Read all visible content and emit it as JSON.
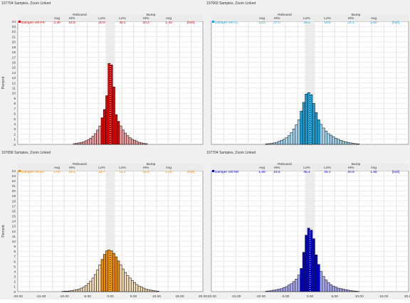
{
  "y_axis_label": "Percent",
  "stats_headers": {
    "rebound": "Rebound",
    "bump": "Bump",
    "cols": [
      "Avg",
      "Hi%",
      "Lo%",
      "Lo%",
      "Hi%",
      "Avg"
    ],
    "unit": "[in/s]"
  },
  "chart_data": [
    {
      "type": "bar",
      "title": "107704 Samples, Zoom Linked",
      "ylabel": "Percent",
      "ylim": [
        0,
        24
      ],
      "xlim": [
        -20,
        20
      ],
      "y_ticks": [
        "0",
        "1",
        "2",
        "3",
        "4",
        "5",
        "6",
        "7",
        "8",
        "9",
        "10",
        "11",
        "12",
        "13",
        "14",
        "15",
        "16",
        "17",
        "18",
        "19",
        "20",
        "21",
        "22",
        "23",
        "24"
      ],
      "x_ticks": [],
      "series": [
        {
          "name": "Damper Vel FR",
          "color": "#e00000",
          "light_color": "#f0a0a0",
          "bin_width": 0.5,
          "centers": [
            -7.75,
            -7.25,
            -6.75,
            -6.25,
            -5.75,
            -5.25,
            -4.75,
            -4.25,
            -3.75,
            -3.25,
            -2.75,
            -2.25,
            -1.75,
            -1.25,
            -0.75,
            -0.25,
            0.25,
            0.75,
            1.25,
            1.75,
            2.25,
            2.75,
            3.25,
            3.75,
            4.25,
            4.75,
            5.25,
            5.75,
            6.25,
            6.75,
            7.25,
            7.75
          ],
          "values": [
            0.15,
            0.2,
            0.3,
            0.4,
            0.5,
            0.7,
            0.9,
            1.2,
            1.6,
            2.1,
            2.8,
            3.6,
            5.2,
            6.8,
            9.5,
            15.8,
            15.5,
            11.2,
            5.8,
            4.5,
            3.6,
            2.8,
            2.2,
            1.7,
            1.3,
            1.0,
            0.8,
            0.6,
            0.4,
            0.3,
            0.2,
            0.15
          ]
        }
      ],
      "stats": {
        "label": "Damper Vel FR",
        "values": [
          "2.36",
          "18.8",
          "20.9",
          "40.1",
          "20.2",
          "1.43"
        ]
      }
    },
    {
      "type": "bar",
      "title": "107669 Samples, Zoom Linked",
      "ylabel": "",
      "ylim": [
        0,
        24
      ],
      "xlim": [
        -20,
        20
      ],
      "y_ticks": [],
      "x_ticks": [],
      "series": [
        {
          "name": "Damper Vel FL",
          "color": "#1a9fd8",
          "light_color": "#a6d8ef",
          "bin_width": 0.5,
          "centers": [
            -8.75,
            -8.25,
            -7.75,
            -7.25,
            -6.75,
            -6.25,
            -5.75,
            -5.25,
            -4.75,
            -4.25,
            -3.75,
            -3.25,
            -2.75,
            -2.25,
            -1.75,
            -1.25,
            -0.75,
            -0.25,
            0.25,
            0.75,
            1.25,
            1.75,
            2.25,
            2.75,
            3.25,
            3.75,
            4.25,
            4.75,
            5.25,
            5.75,
            6.25,
            6.75,
            7.25,
            7.75,
            8.25,
            8.75,
            9.25,
            9.75
          ],
          "values": [
            0.1,
            0.15,
            0.2,
            0.3,
            0.4,
            0.6,
            0.8,
            1.0,
            1.3,
            1.7,
            2.3,
            3.0,
            3.8,
            4.8,
            6.5,
            8.2,
            9.8,
            10.1,
            9.7,
            8.0,
            6.2,
            4.8,
            3.9,
            3.2,
            2.6,
            2.1,
            1.8,
            1.5,
            1.2,
            1.0,
            0.8,
            0.6,
            0.5,
            0.4,
            0.3,
            0.2,
            0.15,
            0.1
          ]
        }
      ],
      "stats": {
        "label": "Damper Vel FL",
        "values": [
          "2.01",
          "27.0",
          "29.4",
          "19.6",
          "24.1",
          "2.60"
        ]
      }
    },
    {
      "type": "bar",
      "title": "107658 Samples, Zoom Linked",
      "ylabel": "Percent",
      "ylim": [
        0,
        24
      ],
      "xlim": [
        -20,
        20
      ],
      "y_ticks": [
        "0",
        "1",
        "2",
        "3",
        "4",
        "5",
        "6",
        "7",
        "8",
        "9",
        "10",
        "11",
        "12",
        "13",
        "14",
        "15",
        "16",
        "17",
        "18",
        "19",
        "20",
        "21",
        "22",
        "23",
        "24"
      ],
      "x_ticks": [
        "-20.00",
        "-15.00",
        "-10.00",
        "-5.00",
        "0.00",
        "5.00",
        "10.00",
        "15.00",
        "20.00"
      ],
      "series": [
        {
          "name": "Damper Vel RL",
          "color": "#f08c00",
          "light_color": "#f5ddb8",
          "bin_width": 0.5,
          "centers": [
            -10.25,
            -9.75,
            -9.25,
            -8.75,
            -8.25,
            -7.75,
            -7.25,
            -6.75,
            -6.25,
            -5.75,
            -5.25,
            -4.75,
            -4.25,
            -3.75,
            -3.25,
            -2.75,
            -2.25,
            -1.75,
            -1.25,
            -0.75,
            -0.25,
            0.25,
            0.75,
            1.25,
            1.75,
            2.25,
            2.75,
            3.25,
            3.75,
            4.25,
            4.75,
            5.25,
            5.75,
            6.25,
            6.75,
            7.25,
            7.75,
            8.25,
            8.75,
            9.25,
            9.75,
            10.25
          ],
          "values": [
            0.05,
            0.1,
            0.1,
            0.15,
            0.2,
            0.3,
            0.4,
            0.5,
            0.7,
            0.9,
            1.2,
            1.6,
            2.1,
            2.7,
            3.4,
            4.3,
            5.3,
            6.4,
            7.4,
            8.1,
            8.3,
            8.1,
            7.6,
            6.9,
            6.1,
            5.3,
            4.5,
            3.8,
            3.2,
            2.7,
            2.2,
            1.8,
            1.4,
            1.1,
            0.9,
            0.7,
            0.5,
            0.4,
            0.3,
            0.2,
            0.15,
            0.1
          ]
        }
      ],
      "stats": {
        "label": "Damper Vel RL",
        "values": [
          "2.00",
          "26.1",
          "24.7",
          "21.4",
          "25.8",
          "2.26"
        ]
      }
    },
    {
      "type": "bar",
      "title": "107704 Samples, Zoom Linked",
      "ylabel": "",
      "ylim": [
        0,
        24
      ],
      "xlim": [
        -20,
        20
      ],
      "y_ticks": [],
      "x_ticks": [
        "-20.00",
        "-15.00",
        "-10.00",
        "-5.00",
        "0.00",
        "5.00",
        "10.00",
        "15.00",
        "20.00"
      ],
      "series": [
        {
          "name": "Damper Vel RR",
          "color": "#0000c8",
          "light_color": "#a8a8ec",
          "bin_width": 0.5,
          "centers": [
            -8.75,
            -8.25,
            -7.75,
            -7.25,
            -6.75,
            -6.25,
            -5.75,
            -5.25,
            -4.75,
            -4.25,
            -3.75,
            -3.25,
            -2.75,
            -2.25,
            -1.75,
            -1.25,
            -0.75,
            -0.25,
            0.25,
            0.75,
            1.25,
            1.75,
            2.25,
            2.75,
            3.25,
            3.75,
            4.25,
            4.75,
            5.25,
            5.75,
            6.25,
            6.75,
            7.25,
            7.75,
            8.25,
            8.75,
            9.25,
            9.75
          ],
          "values": [
            0.1,
            0.15,
            0.2,
            0.3,
            0.4,
            0.5,
            0.6,
            0.8,
            1.0,
            1.3,
            1.6,
            2.0,
            2.5,
            3.3,
            4.6,
            7.8,
            11.2,
            12.6,
            12.2,
            10.5,
            7.3,
            5.4,
            4.0,
            3.0,
            2.3,
            1.8,
            1.4,
            1.1,
            0.9,
            0.7,
            0.6,
            0.5,
            0.4,
            0.3,
            0.2,
            0.15,
            0.1,
            0.05
          ]
        }
      ],
      "stats": {
        "label": "Damper Vel RR",
        "values": [
          "1.58",
          "18.6",
          "35.4",
          "25.1",
          "20.9",
          "1.86"
        ]
      }
    }
  ]
}
